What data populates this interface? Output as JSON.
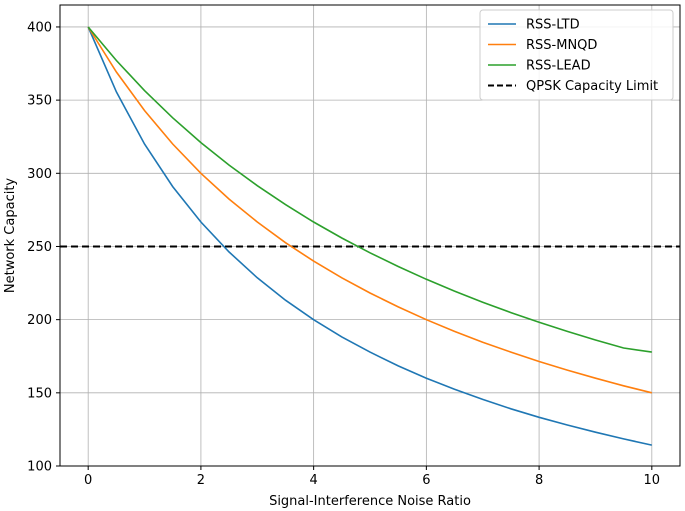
{
  "chart_data": {
    "type": "line",
    "xlabel": "Signal-Interference Noise Ratio",
    "ylabel": "Network Capacity",
    "xlim": [
      -0.5,
      10.5
    ],
    "ylim": [
      100,
      415
    ],
    "xticks": [
      0,
      2,
      4,
      6,
      8,
      10
    ],
    "yticks": [
      100,
      150,
      200,
      250,
      300,
      350,
      400
    ],
    "grid": true,
    "legend_position": "top-right",
    "x": [
      0,
      0.5,
      1,
      1.5,
      2,
      2.5,
      3,
      3.5,
      4,
      4.5,
      5,
      5.5,
      6,
      6.5,
      7,
      7.5,
      8,
      8.5,
      9,
      9.5,
      10
    ],
    "series": [
      {
        "name": "RSS-LTD",
        "color": "#1f77b4",
        "values": [
          400,
          355.6,
          320,
          290.9,
          266.7,
          246.2,
          228.6,
          213.3,
          200,
          188.2,
          177.8,
          168.4,
          160,
          152.4,
          145.5,
          139.1,
          133.3,
          128,
          123.1,
          118.5,
          114.3
        ]
      },
      {
        "name": "RSS-MNQD",
        "color": "#ff7f0e",
        "values": [
          400,
          369.2,
          342.9,
          320,
          300,
          282.4,
          266.7,
          252.6,
          240,
          228.6,
          218.2,
          208.7,
          200,
          192,
          184.6,
          177.8,
          171.4,
          165.5,
          160,
          154.8,
          150
        ]
      },
      {
        "name": "RSS-LEAD",
        "color": "#2ca02c",
        "values": [
          400,
          377.1,
          356.5,
          337.9,
          321.0,
          305.6,
          291.5,
          278.6,
          266.7,
          255.8,
          245.7,
          236.3,
          227.6,
          219.5,
          211.9,
          204.8,
          198.2,
          192.0,
          186.1,
          180.6,
          177.8
        ]
      }
    ],
    "hlines": [
      {
        "name": "QPSK Capacity Limit",
        "value": 250,
        "color": "#000000",
        "style": "dashed"
      }
    ]
  }
}
